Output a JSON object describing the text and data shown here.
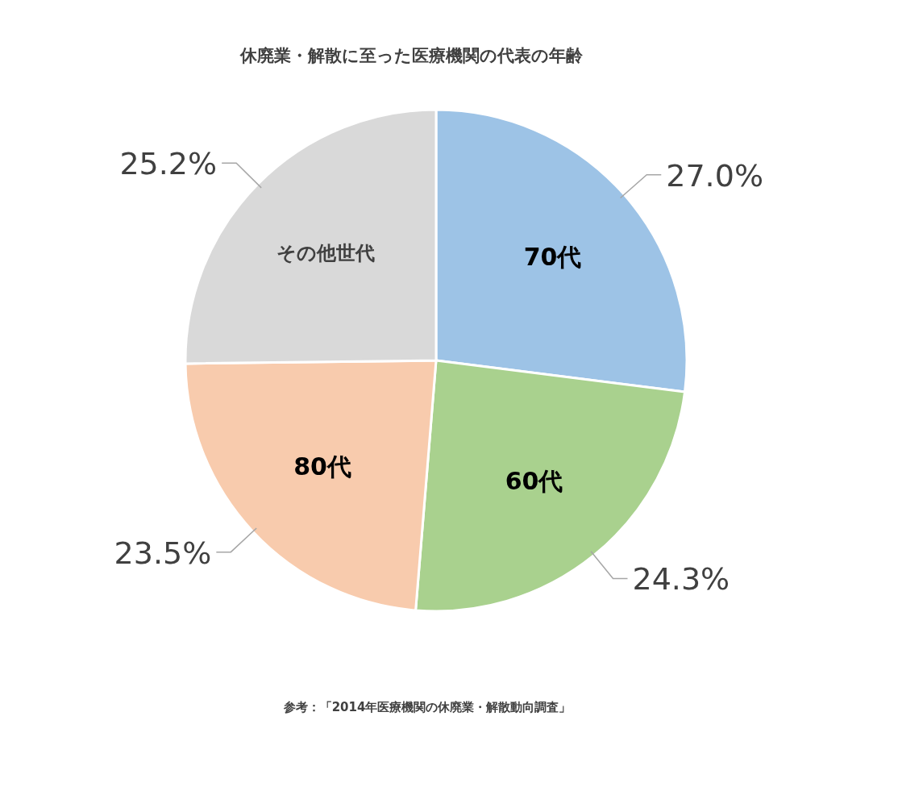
{
  "chart_data": {
    "type": "pie",
    "title": "休廃業・解散に至った医療機関の代表の年齢",
    "categories": [
      "70代",
      "60代",
      "80代",
      "その他世代"
    ],
    "values": [
      27.0,
      24.3,
      23.5,
      25.2
    ],
    "colors": [
      "#9dc3e6",
      "#a9d18e",
      "#f8cbad",
      "#d9d9d9"
    ],
    "value_labels": [
      "27.0%",
      "24.3%",
      "23.5%",
      "25.2%"
    ],
    "annotations": [
      "参考：「2014年医療機関の休廃業・解散動向調査」"
    ]
  }
}
